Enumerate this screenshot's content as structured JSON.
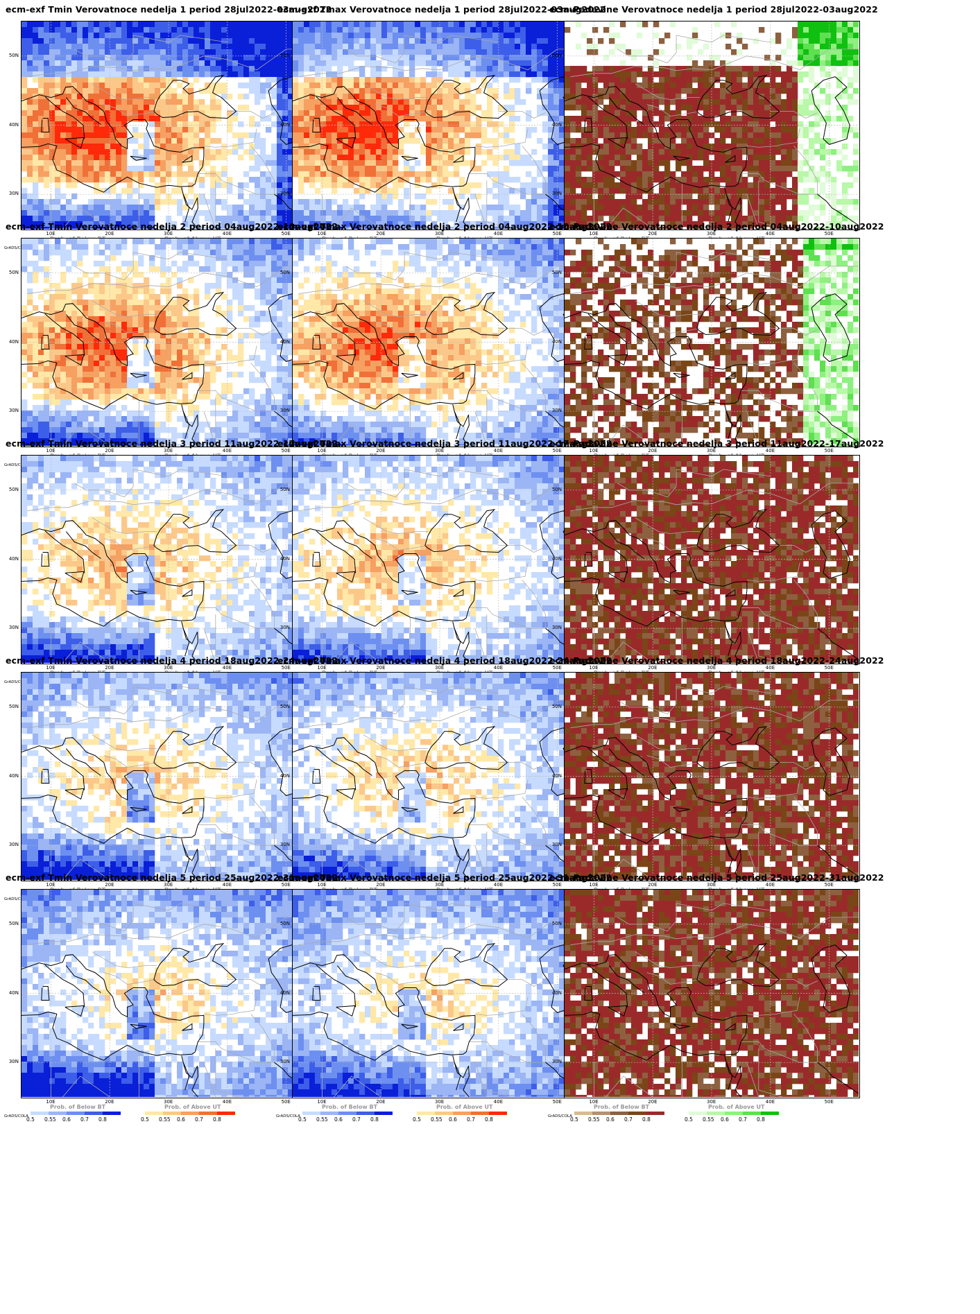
{
  "panels": [
    {
      "title": "ecm-exf Tmin Verovatnoce nedelja 1 period 28jul2022-03aug2022",
      "variable": "Tmin"
    },
    {
      "title": "ecm-exf Tmax Verovatnoce nedelja 1 period 28jul2022-03aug2022",
      "variable": "Tmax"
    },
    {
      "title": "ecm-Padavine Verovatnoce nedelja 1 period 28jul2022-03aug2022",
      "variable": "Padavine"
    },
    {
      "title": "ecm-exf Tmin Verovatnoce nedelja 2 period 04aug2022-10aug2022",
      "variable": "Tmin"
    },
    {
      "title": "ecm-exf Tmax Verovatnoce nedelja 2 period 04aug2022-10aug2022",
      "variable": "Tmax"
    },
    {
      "title": "ecm-Padavine Verovatnoce nedelja 2 period 04aug2022-10aug2022",
      "variable": "Padavine"
    },
    {
      "title": "ecm-exf Tmin Verovatnoce nedelja 3 period 11aug2022-17aug2022",
      "variable": "Tmin"
    },
    {
      "title": "ecm-exf Tmax Verovatnoce nedelja 3 period 11aug2022-17aug2022",
      "variable": "Tmax"
    },
    {
      "title": "ecm-Padavine Verovatnoce nedelja 3 period 11aug2022-17aug2022",
      "variable": "Padavine"
    },
    {
      "title": "ecm-exf Tmin Verovatnoce nedelja 4 period 18aug2022-24aug2022",
      "variable": "Tmin"
    },
    {
      "title": "ecm-exf Tmax Verovatnoce nedelja 4 period 18aug2022-24aug2022",
      "variable": "Tmax"
    },
    {
      "title": "ecm-Padavine Verovatnoce nedelja 4 period 18aug2022-24aug2022",
      "variable": "Padavine"
    },
    {
      "title": "ecm-exf Tmin Verovatnoce nedelja 5 period 25aug2022-31aug2022",
      "variable": "Tmin"
    },
    {
      "title": "ecm-exf Tmax Verovatnoce nedelja 5 period 25aug2022-31aug2022",
      "variable": "Tmax"
    },
    {
      "title": "ecm-Padavine Verovatnoce nedelja 5 period 25aug2022-31aug2022",
      "variable": "Padavine"
    }
  ],
  "axes": {
    "lat_labels": [
      "50N",
      "40N",
      "30N"
    ],
    "lon_labels": [
      "10E",
      "20E",
      "30E",
      "40E",
      "50E"
    ]
  },
  "colorbars": {
    "credit": "GrADS/COLA",
    "temp_below_title": "Prob. of Below BT",
    "temp_above_title": "Prob. of Above UT",
    "prec_below_title": "Prob. of Below BT",
    "prec_above_title": "Prob. of Above UT",
    "ticks": [
      "0.5",
      "0.55",
      "0.6",
      "0.7",
      "0.8"
    ]
  },
  "colors": {
    "temp_below": [
      "#c6dbff",
      "#9bb5f5",
      "#6d8ff0",
      "#3d5ee8",
      "#0a1fd8"
    ],
    "temp_above": [
      "#ffe8a8",
      "#fcc88a",
      "#f6a062",
      "#f07038",
      "#ff2a0a"
    ],
    "prec_below": [
      "#d8bb90",
      "#b89070",
      "#8d6040",
      "#7a4618",
      "#9a2a2a"
    ],
    "prec_above": [
      "#e0fbd8",
      "#b8f8a8",
      "#8ef080",
      "#5ee050",
      "#10c010"
    ],
    "grid_line": "#bbbbbb",
    "coast": "#000000",
    "border": "#aaaaaa"
  }
}
